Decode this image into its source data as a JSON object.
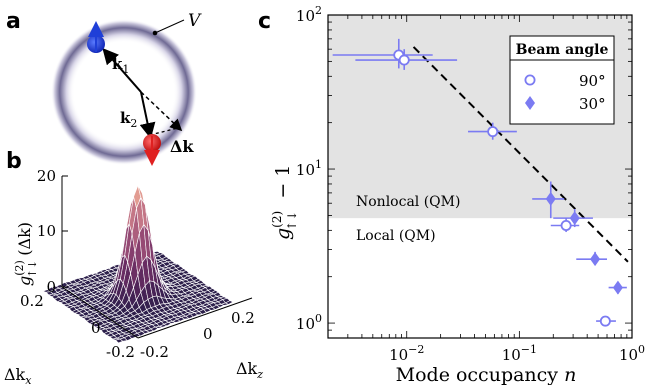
{
  "panels": {
    "a": {
      "letter": "a",
      "V_label": "V",
      "k1_label": "k",
      "k1_sub": "1",
      "k2_label": "k",
      "k2_sub": "2",
      "dk_label": "Δk"
    },
    "b": {
      "letter": "b",
      "zlabel": "g",
      "zlabel_sup": "(2)",
      "zlabel_sub": "↑↓",
      "zlabel_arg": "(Δk)",
      "z_ticks": [
        "0",
        "10",
        "20"
      ],
      "x_ticks": [
        "0.2",
        "0",
        "-0.2"
      ],
      "z_axis_ticks": [
        "-0.2",
        "0",
        "0.2"
      ],
      "xlabel": "Δk",
      "xlabel_sub": "x",
      "ylabel": "Δk",
      "ylabel_sub": "z"
    },
    "c": {
      "letter": "c",
      "nonlocal_label": "Nonlocal (QM)",
      "local_label": "Local (QM)"
    }
  },
  "colors": {
    "marker": "#7b7bf2",
    "shade": "#e3e3e3",
    "spin_up": "#1f3fd8",
    "spin_down": "#e02020",
    "surface_low": "#2a1f4a",
    "surface_high": "#f2b38a"
  },
  "chart_data": {
    "type": "scatter",
    "xscale": "log",
    "yscale": "log",
    "xlim": [
      0.002,
      1
    ],
    "ylim": [
      0.8,
      100
    ],
    "xlabel": "Mode occupancy",
    "xlabel_var": "n",
    "ylabel": "g",
    "ylabel_sup": "(2)",
    "ylabel_sub": "↑↓",
    "ylabel_tail": " − 1",
    "x_ticks": [
      {
        "v": 0.01,
        "base": "10",
        "exp": "−2"
      },
      {
        "v": 0.1,
        "base": "10",
        "exp": "−1"
      },
      {
        "v": 1,
        "base": "10",
        "exp": "0"
      }
    ],
    "y_ticks": [
      {
        "v": 1,
        "base": "10",
        "exp": "0"
      },
      {
        "v": 10,
        "base": "10",
        "exp": "1"
      },
      {
        "v": 100,
        "base": "10",
        "exp": "2"
      }
    ],
    "shaded_threshold": 4.8,
    "legend": {
      "title": "Beam angle",
      "position": "top-right"
    },
    "series": [
      {
        "name": "90°",
        "marker": "open-circle",
        "points": [
          {
            "x": 0.0085,
            "y": 55,
            "xerr": [
              0.0022,
              0.017
            ],
            "yerr": [
              45,
              70
            ]
          },
          {
            "x": 0.0095,
            "y": 51,
            "xerr": [
              0.0035,
              0.028
            ],
            "yerr": [
              44,
              60
            ]
          },
          {
            "x": 0.058,
            "y": 17.5,
            "xerr": [
              0.035,
              0.095
            ],
            "yerr": [
              15.5,
              20
            ]
          },
          {
            "x": 0.26,
            "y": 4.3,
            "xerr": [
              0.19,
              0.34
            ],
            "yerr": [
              3.9,
              4.8
            ]
          },
          {
            "x": 0.58,
            "y": 1.03,
            "xerr": [
              0.48,
              0.72
            ],
            "yerr": [
              0.97,
              1.1
            ]
          }
        ]
      },
      {
        "name": "30°",
        "marker": "filled-diamond",
        "points": [
          {
            "x": 0.19,
            "y": 6.4,
            "xerr": [
              0.13,
              0.25
            ],
            "yerr": [
              4.8,
              8.3
            ]
          },
          {
            "x": 0.31,
            "y": 4.8,
            "xerr": [
              0.2,
              0.45
            ],
            "yerr": [
              4.2,
              5.5
            ]
          },
          {
            "x": 0.47,
            "y": 2.6,
            "xerr": [
              0.32,
              0.6
            ],
            "yerr": [
              2.4,
              2.9
            ]
          },
          {
            "x": 0.75,
            "y": 1.7,
            "xerr": [
              0.62,
              0.9
            ],
            "yerr": [
              1.55,
              1.85
            ]
          }
        ]
      }
    ],
    "fit_line": {
      "style": "dashed",
      "x": [
        0.0115,
        0.92
      ],
      "y": [
        62,
        2.5
      ]
    }
  }
}
